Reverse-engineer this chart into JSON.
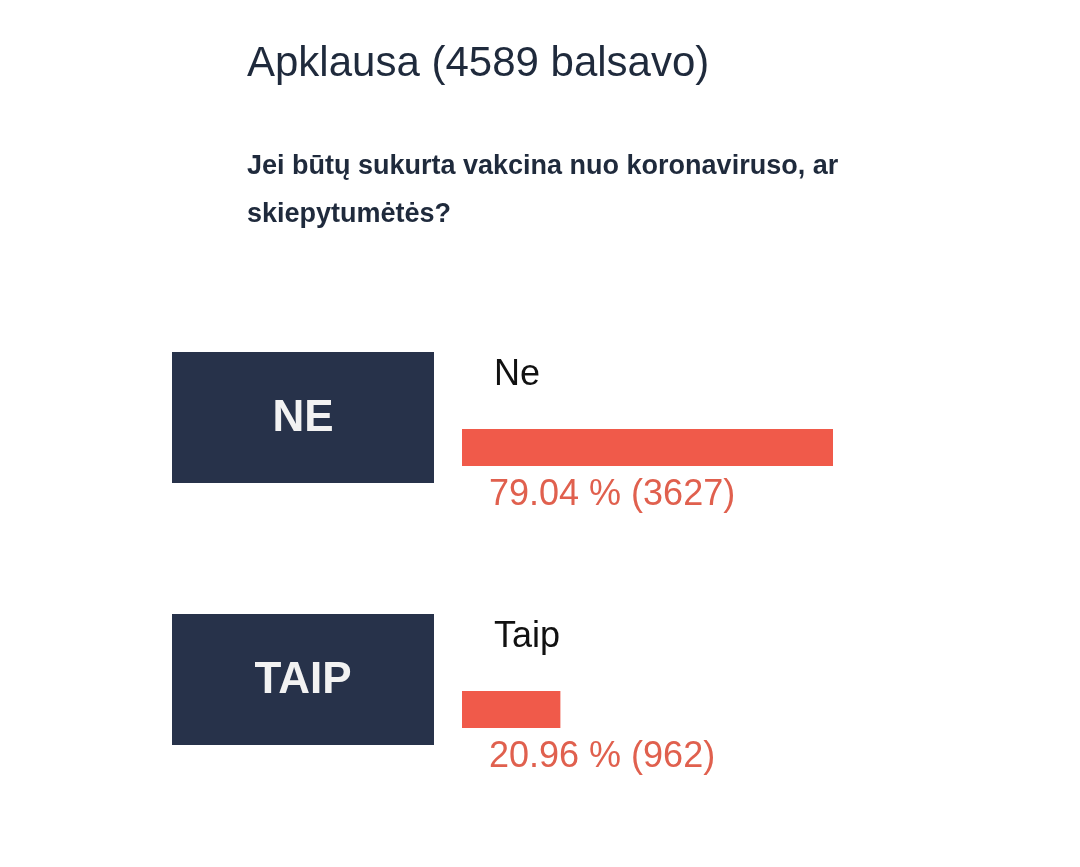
{
  "chart_data": {
    "type": "bar",
    "orientation": "horizontal",
    "title": "Apklausa (4589 balsavo)",
    "subtitle": "Jei būtų sukurta vakcina nuo koronaviruso, ar skiepytumėtės?",
    "categories": [
      "Ne",
      "Taip"
    ],
    "values": [
      79.04,
      20.96
    ],
    "value_labels": [
      "79.04 % (3627)",
      "20.96 % (962)"
    ],
    "color": "#f05a4a",
    "annotations": [
      "NE",
      "TAIP"
    ]
  }
}
